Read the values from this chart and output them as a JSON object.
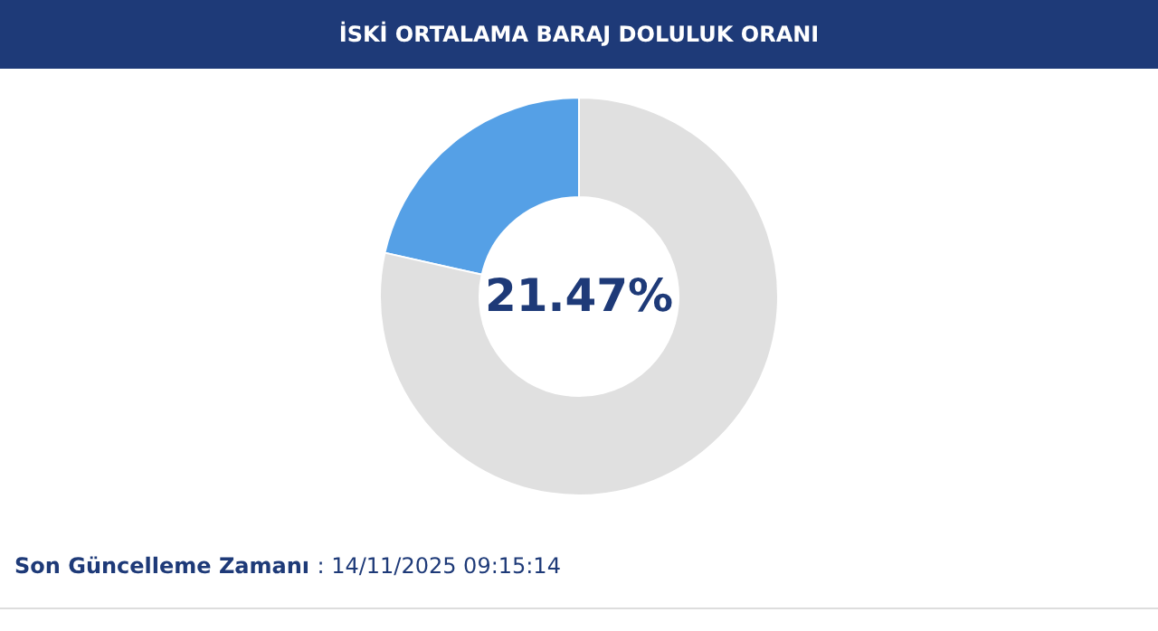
{
  "chart_data": {
    "type": "donut",
    "title": "İSKİ ORTALAMA BARAJ DOLULUK ORANI",
    "categories": [
      null,
      null
    ],
    "values": [
      21.47,
      78.53
    ],
    "colors": [
      "#55a0e6",
      "#e0e0e0"
    ],
    "value_labels": [
      "21.47%",
      null
    ],
    "annotations": [
      "Son Güncelleme Zamanı : 14/11/2025 09:15:14"
    ]
  }
}
